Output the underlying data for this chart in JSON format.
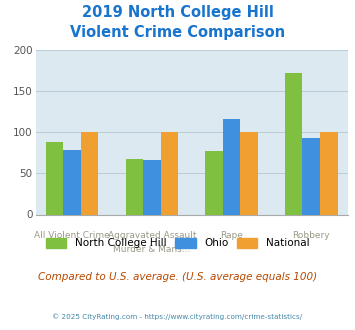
{
  "title_line1": "2019 North College Hill",
  "title_line2": "Violent Crime Comparison",
  "title_color": "#1874cd",
  "cat_labels_top": [
    "",
    "Aggravated Assault",
    "Rape",
    ""
  ],
  "cat_labels_bot": [
    "All Violent Crime",
    "Murder & Mans...",
    "",
    "Robbery"
  ],
  "series": {
    "North College Hill": [
      88,
      67,
      77,
      172
    ],
    "Ohio": [
      78,
      66,
      116,
      93
    ],
    "National": [
      100,
      100,
      100,
      100
    ]
  },
  "colors": {
    "North College Hill": "#80c040",
    "Ohio": "#4090e0",
    "National": "#f0a030"
  },
  "ylim": [
    0,
    200
  ],
  "yticks": [
    0,
    50,
    100,
    150,
    200
  ],
  "background_color": "#dce9f0",
  "footer_text": "Compared to U.S. average. (U.S. average equals 100)",
  "footer_color": "#b84800",
  "copyright_text": "© 2025 CityRating.com - https://www.cityrating.com/crime-statistics/",
  "copyright_color": "#4488aa",
  "grid_color": "#b8cdd8"
}
